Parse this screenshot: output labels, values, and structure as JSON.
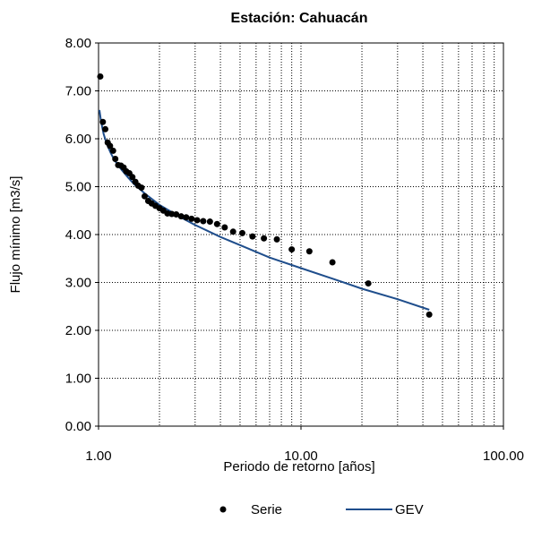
{
  "chart_data": {
    "type": "scatter",
    "title": "Estación: Cahuacán",
    "xlabel": "Periodo de retorno [años]",
    "ylabel": "Flujo mínimo [m3/s]",
    "x_scale": "log",
    "xlim": [
      1,
      100
    ],
    "ylim": [
      0,
      8
    ],
    "x_ticks": [
      "1.00",
      "10.00",
      "100.00"
    ],
    "y_ticks": [
      "0.00",
      "1.00",
      "2.00",
      "3.00",
      "4.00",
      "5.00",
      "6.00",
      "7.00",
      "8.00"
    ],
    "grid": "dotted major and minor",
    "legend_position": "bottom",
    "series": [
      {
        "name": "Serie",
        "kind": "markers",
        "color": "#000000",
        "x": [
          1.02,
          1.05,
          1.08,
          1.11,
          1.14,
          1.18,
          1.21,
          1.25,
          1.29,
          1.33,
          1.37,
          1.42,
          1.47,
          1.52,
          1.57,
          1.63,
          1.69,
          1.76,
          1.83,
          1.91,
          2.0,
          2.09,
          2.19,
          2.3,
          2.42,
          2.56,
          2.71,
          2.88,
          3.07,
          3.29,
          3.55,
          3.85,
          4.2,
          4.62,
          5.13,
          5.76,
          6.56,
          7.6,
          9.0,
          11.0,
          14.3,
          21.5,
          43.0
        ],
        "y": [
          7.3,
          6.35,
          6.2,
          5.92,
          5.85,
          5.75,
          5.58,
          5.45,
          5.44,
          5.4,
          5.32,
          5.28,
          5.2,
          5.1,
          5.02,
          4.98,
          4.8,
          4.7,
          4.65,
          4.6,
          4.55,
          4.5,
          4.44,
          4.43,
          4.42,
          4.38,
          4.36,
          4.33,
          4.3,
          4.28,
          4.27,
          4.22,
          4.15,
          4.06,
          4.03,
          3.96,
          3.92,
          3.9,
          3.69,
          3.65,
          3.42,
          2.98,
          2.33
        ]
      },
      {
        "name": "GEV",
        "kind": "line",
        "color": "#1f4e8c",
        "x": [
          1.01,
          1.03,
          1.06,
          1.1,
          1.15,
          1.2,
          1.3,
          1.4,
          1.5,
          1.7,
          2.0,
          2.5,
          3.0,
          4.0,
          5.0,
          7.0,
          10.0,
          15.0,
          20.0,
          30.0,
          43.0
        ],
        "y": [
          6.6,
          6.35,
          6.1,
          5.88,
          5.7,
          5.55,
          5.35,
          5.19,
          5.05,
          4.85,
          4.62,
          4.38,
          4.2,
          3.95,
          3.78,
          3.52,
          3.3,
          3.05,
          2.87,
          2.65,
          2.43
        ]
      }
    ]
  }
}
